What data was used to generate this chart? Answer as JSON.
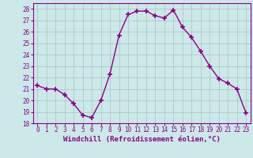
{
  "x": [
    0,
    1,
    2,
    3,
    4,
    5,
    6,
    7,
    8,
    9,
    10,
    11,
    12,
    13,
    14,
    15,
    16,
    17,
    18,
    19,
    20,
    21,
    22,
    23
  ],
  "y": [
    21.3,
    21.0,
    21.0,
    20.5,
    19.7,
    18.7,
    18.5,
    20.0,
    22.3,
    25.7,
    27.5,
    27.8,
    27.8,
    27.4,
    27.2,
    27.9,
    26.4,
    25.5,
    24.3,
    23.0,
    21.9,
    21.5,
    21.0,
    18.9
  ],
  "line_color": "#880088",
  "marker": "+",
  "markersize": 4,
  "markeredgewidth": 1.2,
  "linewidth": 1.0,
  "bg_color": "#cce8e8",
  "grid_color": "#b0c8c8",
  "tick_color": "#880088",
  "label_color": "#880088",
  "xlabel": "Windchill (Refroidissement éolien,°C)",
  "xlim": [
    -0.5,
    23.5
  ],
  "ylim": [
    18,
    28.5
  ],
  "yticks": [
    18,
    19,
    20,
    21,
    22,
    23,
    24,
    25,
    26,
    27,
    28
  ],
  "xticks": [
    0,
    1,
    2,
    3,
    4,
    5,
    6,
    7,
    8,
    9,
    10,
    11,
    12,
    13,
    14,
    15,
    16,
    17,
    18,
    19,
    20,
    21,
    22,
    23
  ],
  "tick_fontsize": 5.5,
  "xlabel_fontsize": 6.5
}
